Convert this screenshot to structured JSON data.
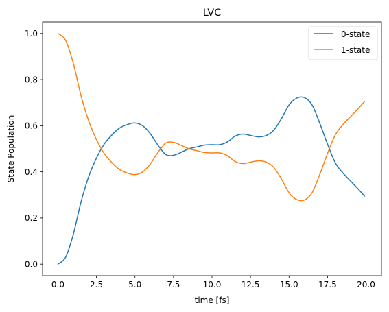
{
  "chart_data": {
    "type": "line",
    "title": "LVC",
    "xlabel": "time [fs]",
    "ylabel": "State Population",
    "xlim": [
      -1.0,
      21.0
    ],
    "ylim": [
      -0.05,
      1.05
    ],
    "xticks": [
      0.0,
      2.5,
      5.0,
      7.5,
      10.0,
      12.5,
      15.0,
      17.5,
      20.0
    ],
    "xtick_labels": [
      "0.0",
      "2.5",
      "5.0",
      "7.5",
      "10.0",
      "12.5",
      "15.0",
      "17.5",
      "20.0"
    ],
    "yticks": [
      0.0,
      0.2,
      0.4,
      0.6,
      0.8,
      1.0
    ],
    "ytick_labels": [
      "0.0",
      "0.2",
      "0.4",
      "0.6",
      "0.8",
      "1.0"
    ],
    "grid": false,
    "legend_position": "top-right",
    "series": [
      {
        "name": "0-state",
        "color": "#1f77b4",
        "x": [
          0.0,
          0.5,
          1.0,
          1.5,
          2.0,
          2.5,
          3.0,
          3.5,
          4.0,
          4.5,
          5.0,
          5.5,
          6.0,
          6.5,
          7.0,
          7.5,
          8.0,
          8.5,
          9.0,
          9.5,
          10.0,
          10.5,
          11.0,
          11.5,
          12.0,
          12.5,
          13.0,
          13.5,
          14.0,
          14.5,
          15.0,
          15.5,
          16.0,
          16.5,
          17.0,
          17.5,
          18.0,
          18.5,
          19.0,
          19.5,
          19.9
        ],
        "y": [
          0.0,
          0.03,
          0.13,
          0.27,
          0.38,
          0.46,
          0.52,
          0.56,
          0.59,
          0.605,
          0.612,
          0.6,
          0.565,
          0.515,
          0.475,
          0.472,
          0.485,
          0.5,
          0.508,
          0.516,
          0.518,
          0.518,
          0.53,
          0.555,
          0.564,
          0.558,
          0.552,
          0.557,
          0.58,
          0.63,
          0.69,
          0.72,
          0.722,
          0.69,
          0.61,
          0.52,
          0.44,
          0.395,
          0.36,
          0.325,
          0.295
        ]
      },
      {
        "name": "1-state",
        "color": "#ff7f0e",
        "x": [
          0.0,
          0.5,
          1.0,
          1.5,
          2.0,
          2.5,
          3.0,
          3.5,
          4.0,
          4.5,
          5.0,
          5.5,
          6.0,
          6.5,
          7.0,
          7.5,
          8.0,
          8.5,
          9.0,
          9.5,
          10.0,
          10.5,
          11.0,
          11.5,
          12.0,
          12.5,
          13.0,
          13.5,
          14.0,
          14.5,
          15.0,
          15.5,
          16.0,
          16.5,
          17.0,
          17.5,
          18.0,
          18.5,
          19.0,
          19.5,
          19.9
        ],
        "y": [
          1.0,
          0.97,
          0.87,
          0.73,
          0.62,
          0.54,
          0.48,
          0.44,
          0.41,
          0.395,
          0.388,
          0.4,
          0.435,
          0.485,
          0.525,
          0.528,
          0.515,
          0.5,
          0.492,
          0.484,
          0.482,
          0.482,
          0.47,
          0.445,
          0.436,
          0.442,
          0.448,
          0.443,
          0.42,
          0.37,
          0.31,
          0.28,
          0.278,
          0.31,
          0.39,
          0.48,
          0.56,
          0.605,
          0.64,
          0.675,
          0.705
        ]
      }
    ]
  }
}
